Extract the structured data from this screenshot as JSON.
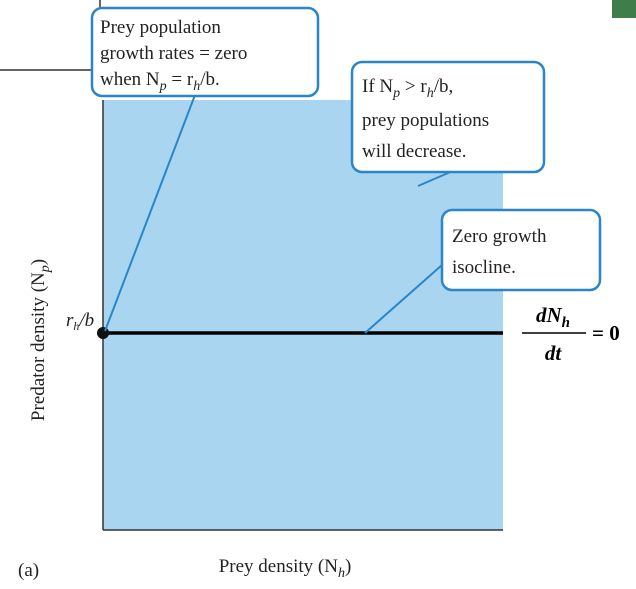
{
  "callouts": [
    {
      "lines": [
        "Prey population",
        "growth rates = zero",
        [
          "when N",
          "p",
          " = r",
          "h",
          "/b."
        ]
      ]
    },
    {
      "lines": [
        [
          "If N",
          "p",
          " > r",
          "h",
          "/b,"
        ],
        "prey populations",
        "will decrease."
      ]
    },
    {
      "lines": [
        "Zero growth",
        "isocline."
      ]
    }
  ],
  "equilibrium_label": [
    "r",
    "h",
    "/b"
  ],
  "equation": {
    "numerator": [
      "dN",
      "h"
    ],
    "denominator": "dt",
    "rhs": "= 0"
  },
  "y_axis_label": [
    "Predator density (N",
    "p",
    ")"
  ],
  "x_axis_label": [
    "Prey density  (N",
    "h",
    ")"
  ],
  "panel_label": "(a)"
}
